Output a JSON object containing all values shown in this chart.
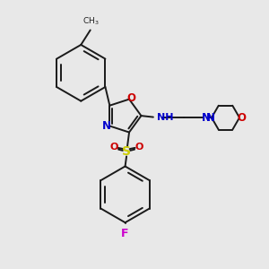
{
  "bg_color": "#e8e8e8",
  "bond_color": "#1a1a1a",
  "N_color": "#0000cc",
  "O_color": "#cc0000",
  "S_color": "#cccc00",
  "F_color": "#cc00cc",
  "lw": 1.4,
  "xlim": [
    0,
    10
  ],
  "ylim": [
    0,
    10
  ]
}
